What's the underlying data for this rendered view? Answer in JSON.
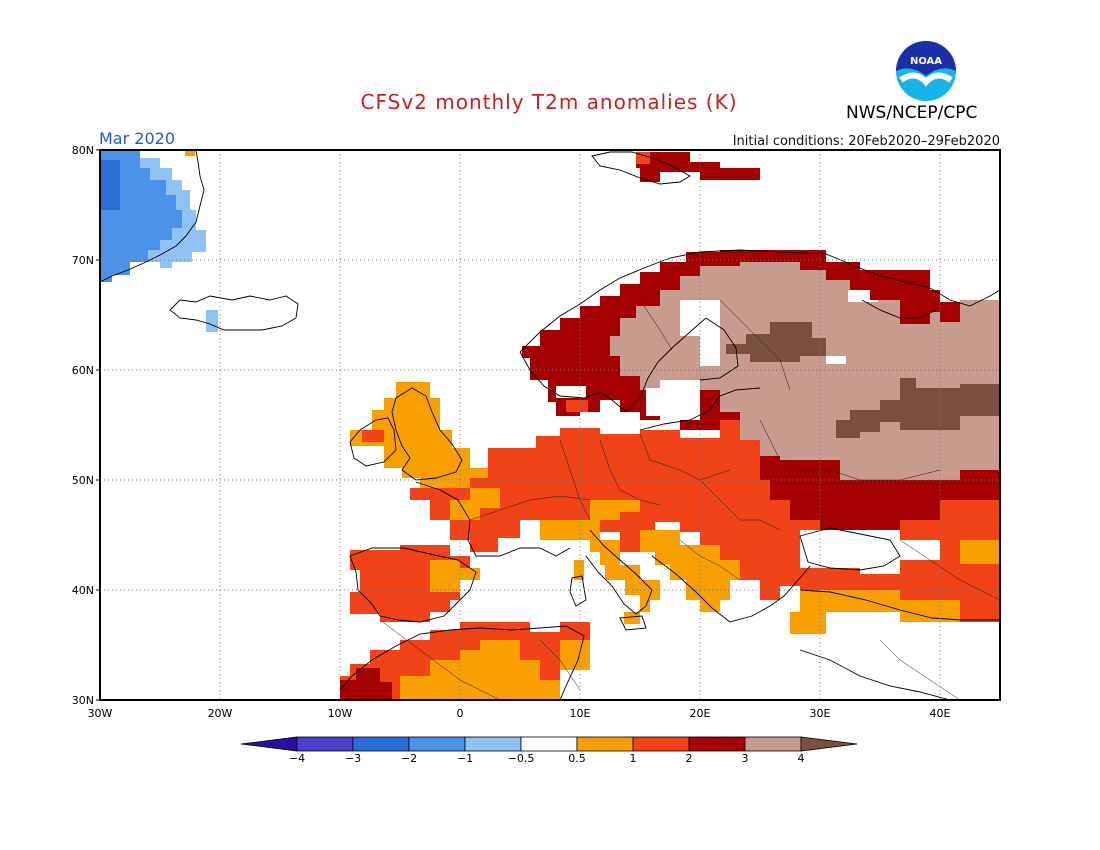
{
  "header": {
    "title": "CFSv2 monthly T2m anomalies (K)",
    "org": "NWS/NCEP/CPC",
    "logo_text": "NOAA",
    "month": "Mar 2020",
    "initial_conditions": "Initial conditions: 20Feb2020–29Feb2020"
  },
  "map": {
    "lon_range": [
      -30,
      45
    ],
    "lat_range": [
      30,
      80
    ],
    "lat_ticks": [
      "30N",
      "40N",
      "50N",
      "60N",
      "70N",
      "80N"
    ],
    "lon_ticks": [
      "30W",
      "20W",
      "10W",
      "0",
      "10E",
      "20E",
      "30E",
      "40E"
    ],
    "grid": "dotted",
    "projection": "equirectangular"
  },
  "legend": {
    "labels": [
      "−4",
      "−3",
      "−2",
      "−1",
      "−0.5",
      "0.5",
      "1",
      "2",
      "3",
      "4"
    ],
    "colors": [
      "#2a0ea0",
      "#4c3fcc",
      "#2a6fd6",
      "#4a93e8",
      "#8fc2f5",
      "#ffffff",
      "#f7a000",
      "#f24218",
      "#a50000",
      "#c79b8e",
      "#7a5040"
    ],
    "unit": "K"
  },
  "anomaly_regions": [
    {
      "name": "greenland",
      "level": "-2 to -1",
      "color": "#4a93e8"
    },
    {
      "name": "greenland-south",
      "level": "-1 to -0.5",
      "color": "#8fc2f5"
    },
    {
      "name": "iberia",
      "level": "1 to 2",
      "color": "#f24218"
    },
    {
      "name": "british-isles",
      "level": "0.5 to 1",
      "color": "#f7a000"
    },
    {
      "name": "central-europe",
      "level": "1 to 2",
      "color": "#f24218"
    },
    {
      "name": "scandinavia-coast",
      "level": "2 to 3",
      "color": "#a50000"
    },
    {
      "name": "finland-russia",
      "level": "3 to 4",
      "color": "#c79b8e"
    },
    {
      "name": "russia-core",
      "level": ">4",
      "color": "#7a5040"
    },
    {
      "name": "ukraine",
      "level": "2 to 3",
      "color": "#a50000"
    },
    {
      "name": "north-africa",
      "level": "1 to 2",
      "color": "#f24218"
    },
    {
      "name": "mediterranean",
      "level": "-0.5 to 0.5",
      "color": "#ffffff"
    }
  ]
}
